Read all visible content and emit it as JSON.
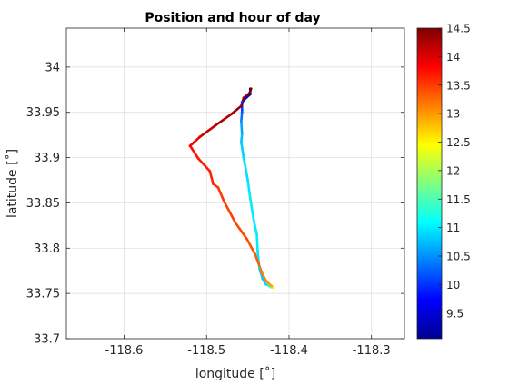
{
  "chart_data": {
    "type": "scatter",
    "title": "Position and hour of day",
    "xlabel": "longitude [˚]",
    "ylabel": "latitude [˚]",
    "xlim": [
      -118.67,
      -118.26
    ],
    "ylim": [
      33.7,
      34.043
    ],
    "grid": true,
    "xticks": [
      -118.6,
      -118.5,
      -118.4,
      -118.3
    ],
    "xtick_labels": [
      "-118.6",
      "-118.5",
      "-118.4",
      "-118.3"
    ],
    "yticks": [
      33.7,
      33.75,
      33.8,
      33.85,
      33.9,
      33.95,
      34.0
    ],
    "ytick_labels": [
      "33.7",
      "33.75",
      "33.8",
      "33.85",
      "33.9",
      "33.95",
      "34"
    ],
    "colorbar": {
      "colormap": "jet",
      "range": [
        9.05,
        14.5
      ],
      "ticks": [
        9.5,
        10,
        10.5,
        11,
        11.5,
        12,
        12.5,
        13,
        13.5,
        14,
        14.5
      ],
      "tick_labels": [
        "9.5",
        "10",
        "10.5",
        "11",
        "11.5",
        "12",
        "12.5",
        "13",
        "13.5",
        "14",
        "14.5"
      ]
    },
    "track": [
      {
        "lon": -118.447,
        "lat": 33.976,
        "hour": 9.1
      },
      {
        "lon": -118.447,
        "lat": 33.97,
        "hour": 9.3
      },
      {
        "lon": -118.452,
        "lat": 33.966,
        "hour": 9.6
      },
      {
        "lon": -118.457,
        "lat": 33.961,
        "hour": 9.9
      },
      {
        "lon": -118.457,
        "lat": 33.95,
        "hour": 10.2
      },
      {
        "lon": -118.458,
        "lat": 33.94,
        "hour": 10.5
      },
      {
        "lon": -118.457,
        "lat": 33.926,
        "hour": 10.7
      },
      {
        "lon": -118.458,
        "lat": 33.917,
        "hour": 10.8
      },
      {
        "lon": -118.455,
        "lat": 33.9,
        "hour": 10.9
      },
      {
        "lon": -118.45,
        "lat": 33.875,
        "hour": 10.95
      },
      {
        "lon": -118.447,
        "lat": 33.855,
        "hour": 11.0
      },
      {
        "lon": -118.443,
        "lat": 33.832,
        "hour": 11.0
      },
      {
        "lon": -118.439,
        "lat": 33.815,
        "hour": 11.0
      },
      {
        "lon": -118.438,
        "lat": 33.796,
        "hour": 11.0
      },
      {
        "lon": -118.436,
        "lat": 33.778,
        "hour": 10.9
      },
      {
        "lon": -118.432,
        "lat": 33.766,
        "hour": 10.8
      },
      {
        "lon": -118.428,
        "lat": 33.76,
        "hour": 10.9
      },
      {
        "lon": -118.422,
        "lat": 33.757,
        "hour": 11.5
      },
      {
        "lon": -118.419,
        "lat": 33.756,
        "hour": 12.5
      },
      {
        "lon": -118.421,
        "lat": 33.758,
        "hour": 12.9
      },
      {
        "lon": -118.428,
        "lat": 33.764,
        "hour": 13.1
      },
      {
        "lon": -118.433,
        "lat": 33.773,
        "hour": 13.2
      },
      {
        "lon": -118.437,
        "lat": 33.783,
        "hour": 13.3
      },
      {
        "lon": -118.441,
        "lat": 33.793,
        "hour": 13.35
      },
      {
        "lon": -118.451,
        "lat": 33.81,
        "hour": 13.4
      },
      {
        "lon": -118.465,
        "lat": 33.828,
        "hour": 13.45
      },
      {
        "lon": -118.479,
        "lat": 33.852,
        "hour": 13.5
      },
      {
        "lon": -118.486,
        "lat": 33.867,
        "hour": 13.55
      },
      {
        "lon": -118.492,
        "lat": 33.871,
        "hour": 13.6
      },
      {
        "lon": -118.496,
        "lat": 33.885,
        "hour": 13.65
      },
      {
        "lon": -118.51,
        "lat": 33.899,
        "hour": 13.7
      },
      {
        "lon": -118.52,
        "lat": 33.913,
        "hour": 13.8
      },
      {
        "lon": -118.508,
        "lat": 33.923,
        "hour": 14.0
      },
      {
        "lon": -118.49,
        "lat": 33.935,
        "hour": 14.2
      },
      {
        "lon": -118.47,
        "lat": 33.948,
        "hour": 14.3
      },
      {
        "lon": -118.458,
        "lat": 33.957,
        "hour": 14.35
      },
      {
        "lon": -118.455,
        "lat": 33.966,
        "hour": 14.4
      },
      {
        "lon": -118.448,
        "lat": 33.971,
        "hour": 14.45
      },
      {
        "lon": -118.446,
        "lat": 33.976,
        "hour": 14.5
      }
    ]
  }
}
